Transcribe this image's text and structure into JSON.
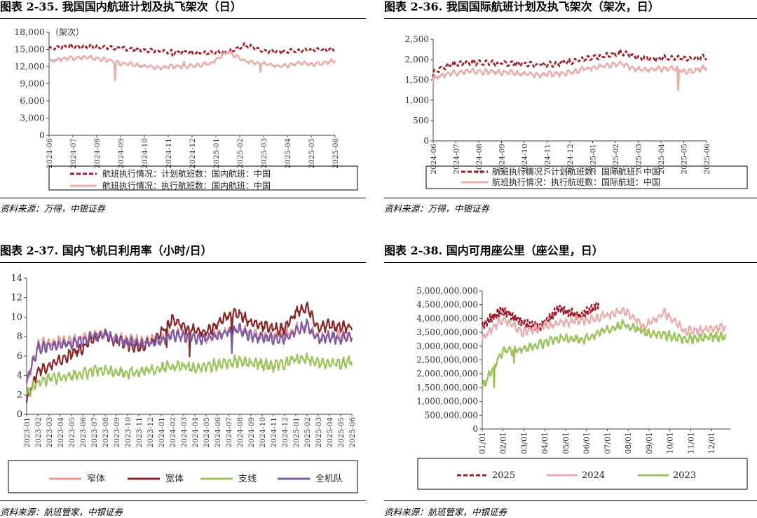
{
  "source_a": "资料来源：万得，中银证券",
  "source_b": "资料来源：航班管家，中银证券",
  "chart_data": [
    {
      "id": "c35",
      "type": "line",
      "title": "图表 2-35. 我国国内航班计划及执飞架次（日）",
      "ylabel": "（架次）",
      "ylim": [
        0,
        18000
      ],
      "yticks": [
        0,
        3000,
        6000,
        9000,
        12000,
        15000,
        18000
      ],
      "ytick_labels": [
        "0",
        "3,000",
        "6,000",
        "9,000",
        "12,000",
        "15,000",
        "18,000"
      ],
      "xtick_labels": [
        "2024-06",
        "2024-07",
        "2024-08",
        "2024-09",
        "2024-10",
        "2024-11",
        "2024-12",
        "2025-01",
        "2025-02",
        "2025-03",
        "2025-04",
        "2025-05",
        "2025-06"
      ],
      "legend_position": "bottom",
      "series": [
        {
          "name": "航班执行情况：计划航班数：国内航班：中国",
          "color": "#A01C2C",
          "dashed": true,
          "values": [
            15200,
            15600,
            15500,
            15400,
            15200,
            14900,
            14800,
            14600,
            14500,
            14300,
            14500,
            15800,
            14800,
            14600,
            14800,
            15000,
            14900
          ]
        },
        {
          "name": "航班执行情况：执行航班数：国内航班：中国",
          "color": "#E8AEAE",
          "dashed": false,
          "values": [
            13000,
            13500,
            13600,
            13300,
            12600,
            12200,
            11800,
            12000,
            12200,
            12500,
            14600,
            12900,
            12500,
            12000,
            12600,
            12400,
            13100
          ]
        }
      ]
    },
    {
      "id": "c36",
      "type": "line",
      "title": "图表 2-36. 我国国际航班计划及执飞架次（架次，日）",
      "ylim": [
        0,
        2500
      ],
      "yticks": [
        0,
        500,
        1000,
        1500,
        2000,
        2500
      ],
      "ytick_labels": [
        "0",
        "500",
        "1,000",
        "1,500",
        "2,000",
        "2,500"
      ],
      "xtick_labels": [
        "2024-06",
        "2024-07",
        "2024-08",
        "2024-09",
        "2024-10",
        "2024-11",
        "2024-12",
        "2025-01",
        "2025-02",
        "2025-03",
        "2025-04",
        "2025-05",
        "2025-06"
      ],
      "legend_position": "bottom",
      "series": [
        {
          "name": "航班执行情况：计划航班数：国际航班：中国",
          "color": "#A01C2C",
          "dashed": true,
          "values": [
            1700,
            1880,
            1920,
            1930,
            1900,
            1910,
            1880,
            1900,
            1950,
            2010,
            2080,
            2180,
            2060,
            2020,
            2050,
            2020,
            2060
          ]
        },
        {
          "name": "航班执行情况：执行航班数：国际航班：中国",
          "color": "#E8AEAE",
          "dashed": false,
          "values": [
            1550,
            1670,
            1710,
            1700,
            1690,
            1660,
            1620,
            1640,
            1700,
            1780,
            1850,
            1900,
            1750,
            1760,
            1780,
            1700,
            1820
          ]
        }
      ]
    },
    {
      "id": "c37",
      "type": "line",
      "title": "图表 2-37. 国内飞机日利用率（小时/日）",
      "ylim": [
        0,
        14
      ],
      "yticks": [
        0,
        2,
        4,
        6,
        8,
        10,
        12,
        14
      ],
      "ytick_labels": [
        "0",
        "2",
        "4",
        "6",
        "8",
        "10",
        "12",
        "14"
      ],
      "xtick_labels": [
        "2023-01",
        "2023-02",
        "2023-03",
        "2023-04",
        "2023-05",
        "2023-06",
        "2023-07",
        "2023-08",
        "2023-09",
        "2023-10",
        "2023-11",
        "2023-12",
        "2024-01",
        "2024-02",
        "2024-03",
        "2024-04",
        "2024-05",
        "2024-06",
        "2024-07",
        "2024-08",
        "2024-09",
        "2024-10",
        "2024-11",
        "2024-12",
        "2025-01",
        "2025-02",
        "2025-03",
        "2025-04",
        "2025-05",
        "2025-06"
      ],
      "legend_position": "bottom",
      "series": [
        {
          "name": "窄体",
          "color": "#E89A90",
          "values": [
            3,
            7.2,
            7.3,
            7.5,
            7.6,
            7.8,
            8.2,
            8.3,
            7.9,
            7.8,
            7.6,
            7.5,
            7.8,
            8.3,
            8.2,
            8.0,
            7.9,
            8.2,
            8.5,
            8.6,
            8.3,
            8.2,
            8.1,
            8.2,
            8.8,
            9.0,
            7.9,
            8.1,
            8.0,
            8.1
          ]
        },
        {
          "name": "宽体",
          "color": "#8B2525",
          "values": [
            1.5,
            4.5,
            5.0,
            5.5,
            6.2,
            6.8,
            7.8,
            8.2,
            7.5,
            7.2,
            7.0,
            7.3,
            8.5,
            9.8,
            9.0,
            8.6,
            8.4,
            9.2,
            10.2,
            10.4,
            9.4,
            9.2,
            8.8,
            8.8,
            10.5,
            11.0,
            8.8,
            9.2,
            9.0,
            9.1
          ]
        },
        {
          "name": "支线",
          "color": "#9BC45A",
          "values": [
            2,
            3.3,
            3.6,
            3.8,
            4.0,
            4.2,
            4.4,
            4.5,
            4.4,
            4.3,
            4.4,
            4.5,
            4.8,
            5.0,
            4.9,
            4.8,
            4.9,
            5.1,
            5.3,
            5.5,
            5.2,
            5.1,
            5.0,
            5.2,
            5.7,
            5.8,
            5.2,
            5.3,
            5.2,
            5.4
          ]
        },
        {
          "name": "全机队",
          "color": "#7A5BA8",
          "values": [
            3.5,
            6.8,
            7.0,
            7.1,
            7.3,
            7.5,
            8.0,
            8.1,
            7.7,
            7.5,
            7.3,
            7.3,
            7.6,
            8.2,
            8.0,
            7.8,
            7.7,
            8.1,
            8.5,
            8.7,
            8.0,
            7.9,
            7.7,
            7.8,
            8.6,
            9.2,
            7.7,
            8.0,
            7.8,
            8.0
          ]
        }
      ]
    },
    {
      "id": "c38",
      "type": "line",
      "title": "图表 2-38. 国内可用座公里（座公里，日）",
      "ylim": [
        0,
        5000000000
      ],
      "yticks": [
        0,
        500000000,
        1000000000,
        1500000000,
        2000000000,
        2500000000,
        3000000000,
        3500000000,
        4000000000,
        4500000000,
        5000000000
      ],
      "ytick_labels": [
        "0",
        "500,000,000",
        "1,000,000,000",
        "1,500,000,000",
        "2,000,000,000",
        "2,500,000,000",
        "3,000,000,000",
        "3,500,000,000",
        "4,000,000,000",
        "4,500,000,000",
        "5,000,000,000"
      ],
      "xtick_labels": [
        "01/01",
        "02/01",
        "03/01",
        "04/01",
        "05/01",
        "06/01",
        "07/01",
        "08/01",
        "09/01",
        "10/01",
        "11/01",
        "12/01"
      ],
      "legend_position": "bottom",
      "series": [
        {
          "name": "2025",
          "color": "#A01C2C",
          "dashed": true,
          "values": [
            3750000000,
            4300000000,
            3900000000,
            3650000000,
            4400000000,
            4050000000,
            4550000000
          ]
        },
        {
          "name": "2024",
          "color": "#E8AEAE",
          "dashed": false,
          "values": [
            3300000000,
            4000000000,
            3500000000,
            3700000000,
            3850000000,
            3950000000,
            4100000000,
            4300000000,
            3700000000,
            4200000000,
            3550000000,
            3600000000,
            3700000000
          ]
        },
        {
          "name": "2023",
          "color": "#9BC45A",
          "dashed": false,
          "values": [
            1500000000,
            2800000000,
            2900000000,
            3100000000,
            3300000000,
            3250000000,
            3550000000,
            3800000000,
            3500000000,
            3400000000,
            3250000000,
            3300000000,
            3350000000
          ]
        }
      ]
    }
  ]
}
